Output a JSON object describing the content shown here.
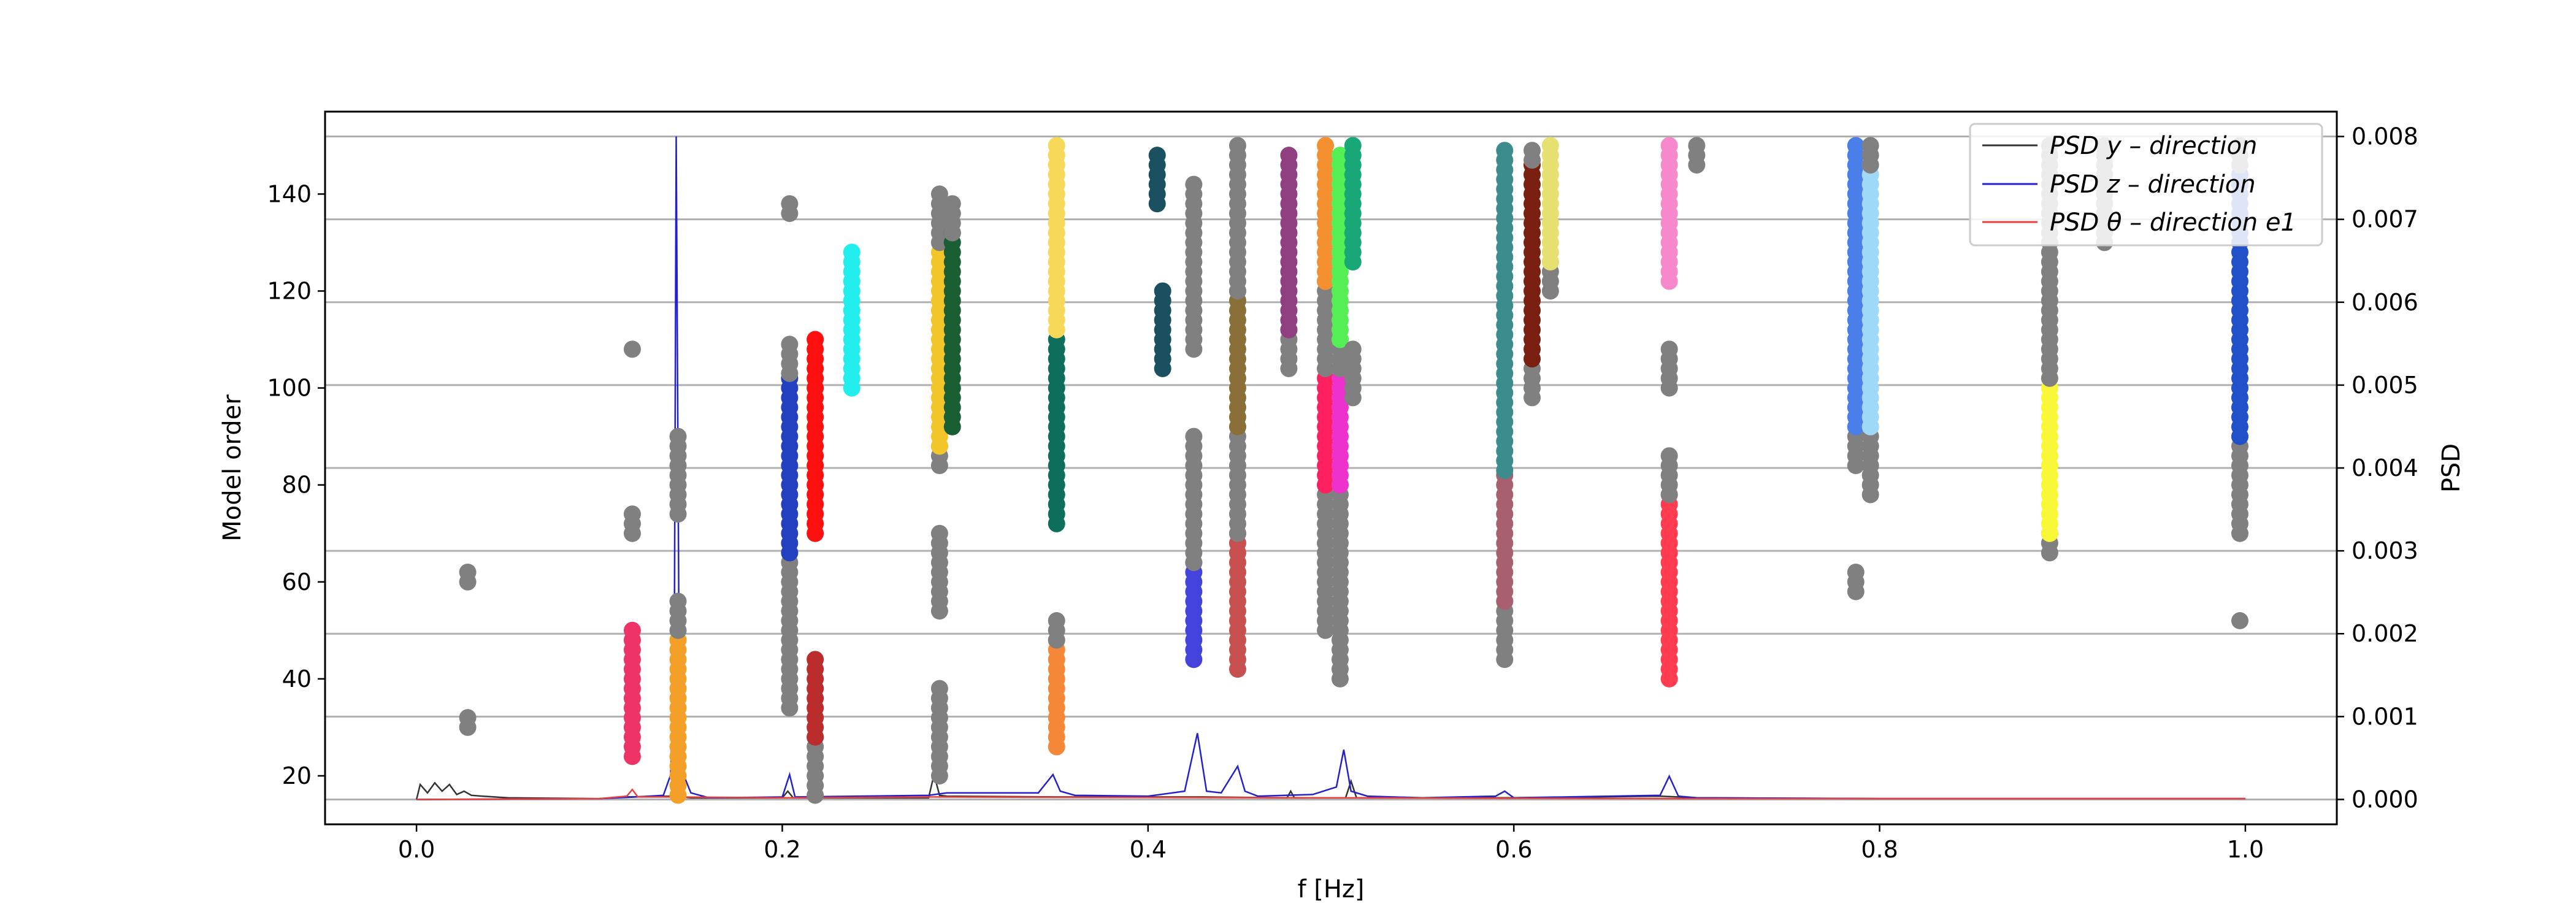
{
  "chart_data": {
    "type": "scatter",
    "title": "",
    "xlabel": "f [Hz]",
    "ylabel_left": "Model order",
    "ylabel_right": "PSD",
    "xlim": [
      -0.05,
      1.05
    ],
    "ylim_left": [
      10,
      157
    ],
    "ylim_right": [
      -0.0003,
      0.0083
    ],
    "x_ticks": [
      0.0,
      0.2,
      0.4,
      0.6,
      0.8,
      1.0
    ],
    "x_tick_labels": [
      "0.0",
      "0.2",
      "0.4",
      "0.6",
      "0.8",
      "1.0"
    ],
    "y_left_ticks": [
      20,
      40,
      60,
      80,
      100,
      120,
      140
    ],
    "y_left_tick_labels": [
      "20",
      "40",
      "60",
      "80",
      "100",
      "120",
      "140"
    ],
    "y_right_ticks": [
      0.0,
      0.001,
      0.002,
      0.003,
      0.004,
      0.005,
      0.006,
      0.007,
      0.008
    ],
    "y_right_tick_labels": [
      "0.000",
      "0.001",
      "0.002",
      "0.003",
      "0.004",
      "0.005",
      "0.006",
      "0.007",
      "0.008"
    ],
    "grid": "horizontal lines at right-axis ticks",
    "legend_placement": "top-right",
    "legend": [
      {
        "label": "PSD y – direction",
        "color": "#333333"
      },
      {
        "label": "PSD z – direction",
        "color": "#2222cc"
      },
      {
        "label": "PSD θ – direction e1",
        "color": "#e84040"
      }
    ],
    "psd_series": [
      {
        "name": "PSD y – direction",
        "color": "#333333",
        "points": [
          [
            0.0,
            0.0
          ],
          [
            0.002,
            0.00018
          ],
          [
            0.006,
            8e-05
          ],
          [
            0.01,
            0.0002
          ],
          [
            0.014,
            0.0001
          ],
          [
            0.018,
            0.00018
          ],
          [
            0.022,
            6e-05
          ],
          [
            0.026,
            0.0001
          ],
          [
            0.03,
            5e-05
          ],
          [
            0.036,
            4e-05
          ],
          [
            0.05,
            2e-05
          ],
          [
            0.1,
            1e-05
          ],
          [
            0.115,
            3e-05
          ],
          [
            0.14,
            4e-05
          ],
          [
            0.15,
            2e-05
          ],
          [
            0.2,
            2e-05
          ],
          [
            0.203,
            0.0001
          ],
          [
            0.206,
            2e-05
          ],
          [
            0.28,
            2e-05
          ],
          [
            0.283,
            0.0003
          ],
          [
            0.286,
            5e-05
          ],
          [
            0.29,
            4e-05
          ],
          [
            0.35,
            3e-05
          ],
          [
            0.43,
            3e-05
          ],
          [
            0.476,
            2e-05
          ],
          [
            0.478,
            0.0001
          ],
          [
            0.48,
            2e-05
          ],
          [
            0.508,
            2e-05
          ],
          [
            0.511,
            0.00022
          ],
          [
            0.514,
            2e-05
          ],
          [
            0.6,
            2e-05
          ],
          [
            0.68,
            4e-05
          ],
          [
            0.7,
            2e-05
          ],
          [
            0.8,
            1e-05
          ],
          [
            0.9,
            1e-05
          ],
          [
            1.0,
            1e-05
          ]
        ]
      },
      {
        "name": "PSD z – direction",
        "color": "#2222cc",
        "points": [
          [
            0.0,
            0.0
          ],
          [
            0.1,
            1e-05
          ],
          [
            0.12,
            3e-05
          ],
          [
            0.135,
            5e-05
          ],
          [
            0.139,
            0.0003
          ],
          [
            0.141,
            0.002
          ],
          [
            0.142,
            0.008
          ],
          [
            0.1435,
            0.002
          ],
          [
            0.146,
            0.0003
          ],
          [
            0.15,
            8e-05
          ],
          [
            0.16,
            2e-05
          ],
          [
            0.2,
            3e-05
          ],
          [
            0.204,
            0.0003
          ],
          [
            0.207,
            3e-05
          ],
          [
            0.28,
            5e-05
          ],
          [
            0.29,
            8e-05
          ],
          [
            0.34,
            8e-05
          ],
          [
            0.348,
            0.0003
          ],
          [
            0.352,
            0.0001
          ],
          [
            0.36,
            5e-05
          ],
          [
            0.4,
            4e-05
          ],
          [
            0.42,
            0.0001
          ],
          [
            0.427,
            0.0008
          ],
          [
            0.432,
            0.0001
          ],
          [
            0.44,
            8e-05
          ],
          [
            0.449,
            0.0004
          ],
          [
            0.453,
            0.0001
          ],
          [
            0.46,
            4e-05
          ],
          [
            0.49,
            6e-05
          ],
          [
            0.503,
            0.00015
          ],
          [
            0.507,
            0.0006
          ],
          [
            0.511,
            0.0001
          ],
          [
            0.52,
            4e-05
          ],
          [
            0.55,
            2e-05
          ],
          [
            0.59,
            4e-05
          ],
          [
            0.595,
            0.0001
          ],
          [
            0.6,
            2e-05
          ],
          [
            0.68,
            5e-05
          ],
          [
            0.685,
            0.00028
          ],
          [
            0.69,
            4e-05
          ],
          [
            0.7,
            2e-05
          ],
          [
            0.8,
            1e-05
          ],
          [
            1.0,
            1e-05
          ]
        ]
      },
      {
        "name": "PSD θ – direction e1",
        "color": "#e84040",
        "points": [
          [
            0.0,
            0.0
          ],
          [
            0.1,
            1e-05
          ],
          [
            0.115,
            4e-05
          ],
          [
            0.118,
            0.00012
          ],
          [
            0.121,
            3e-05
          ],
          [
            0.14,
            3e-05
          ],
          [
            0.2,
            2e-05
          ],
          [
            0.28,
            3e-05
          ],
          [
            0.5,
            2e-05
          ],
          [
            0.7,
            1e-05
          ],
          [
            1.0,
            1e-05
          ]
        ]
      }
    ],
    "stabilization_columns": [
      {
        "f": 0.028,
        "from": 30,
        "to": 32,
        "color": "#808080"
      },
      {
        "f": 0.028,
        "from": 60,
        "to": 62,
        "color": "#808080"
      },
      {
        "f": 0.118,
        "from": 24,
        "to": 50,
        "color": "#ee3366"
      },
      {
        "f": 0.118,
        "from": 70,
        "to": 74,
        "color": "#808080"
      },
      {
        "f": 0.118,
        "from": 108,
        "to": 108,
        "color": "#808080"
      },
      {
        "f": 0.143,
        "from": 16,
        "to": 48,
        "color": "#f4a028"
      },
      {
        "f": 0.143,
        "from": 50,
        "to": 56,
        "color": "#808080"
      },
      {
        "f": 0.143,
        "from": 74,
        "to": 90,
        "color": "#808080"
      },
      {
        "f": 0.204,
        "from": 34,
        "to": 66,
        "color": "#808080"
      },
      {
        "f": 0.204,
        "from": 66,
        "to": 103,
        "color": "#2240c0"
      },
      {
        "f": 0.204,
        "from": 103,
        "to": 110,
        "color": "#808080"
      },
      {
        "f": 0.204,
        "from": 136,
        "to": 138,
        "color": "#808080"
      },
      {
        "f": 0.218,
        "from": 16,
        "to": 28,
        "color": "#808080"
      },
      {
        "f": 0.218,
        "from": 28,
        "to": 44,
        "color": "#bb2c2c"
      },
      {
        "f": 0.218,
        "from": 70,
        "to": 110,
        "color": "#ff1010"
      },
      {
        "f": 0.238,
        "from": 100,
        "to": 128,
        "color": "#22eeee"
      },
      {
        "f": 0.286,
        "from": 20,
        "to": 38,
        "color": "#808080"
      },
      {
        "f": 0.286,
        "from": 54,
        "to": 70,
        "color": "#808080"
      },
      {
        "f": 0.286,
        "from": 84,
        "to": 88,
        "color": "#808080"
      },
      {
        "f": 0.286,
        "from": 88,
        "to": 130,
        "color": "#f2c628"
      },
      {
        "f": 0.286,
        "from": 130,
        "to": 140,
        "color": "#808080"
      },
      {
        "f": 0.293,
        "from": 92,
        "to": 132,
        "color": "#1a5e34"
      },
      {
        "f": 0.293,
        "from": 132,
        "to": 138,
        "color": "#808080"
      },
      {
        "f": 0.35,
        "from": 26,
        "to": 48,
        "color": "#f48838"
      },
      {
        "f": 0.35,
        "from": 48,
        "to": 52,
        "color": "#808080"
      },
      {
        "f": 0.35,
        "from": 72,
        "to": 110,
        "color": "#0e6e5c"
      },
      {
        "f": 0.35,
        "from": 112,
        "to": 150,
        "color": "#f8d858"
      },
      {
        "f": 0.408,
        "from": 104,
        "to": 120,
        "color": "#1a5060"
      },
      {
        "f": 0.405,
        "from": 138,
        "to": 148,
        "color": "#1a5060"
      },
      {
        "f": 0.425,
        "from": 44,
        "to": 64,
        "color": "#4444dd"
      },
      {
        "f": 0.425,
        "from": 64,
        "to": 90,
        "color": "#808080"
      },
      {
        "f": 0.425,
        "from": 108,
        "to": 142,
        "color": "#808080"
      },
      {
        "f": 0.449,
        "from": 42,
        "to": 70,
        "color": "#c85050"
      },
      {
        "f": 0.449,
        "from": 70,
        "to": 92,
        "color": "#808080"
      },
      {
        "f": 0.449,
        "from": 92,
        "to": 120,
        "color": "#8a7038"
      },
      {
        "f": 0.449,
        "from": 120,
        "to": 150,
        "color": "#808080"
      },
      {
        "f": 0.477,
        "from": 104,
        "to": 112,
        "color": "#808080"
      },
      {
        "f": 0.477,
        "from": 112,
        "to": 149,
        "color": "#904080"
      },
      {
        "f": 0.497,
        "from": 50,
        "to": 80,
        "color": "#808080"
      },
      {
        "f": 0.497,
        "from": 80,
        "to": 104,
        "color": "#ff2060"
      },
      {
        "f": 0.497,
        "from": 104,
        "to": 122,
        "color": "#808080"
      },
      {
        "f": 0.497,
        "from": 122,
        "to": 150,
        "color": "#f49030"
      },
      {
        "f": 0.505,
        "from": 40,
        "to": 80,
        "color": "#808080"
      },
      {
        "f": 0.505,
        "from": 80,
        "to": 104,
        "color": "#ee30cc"
      },
      {
        "f": 0.505,
        "from": 104,
        "to": 110,
        "color": "#808080"
      },
      {
        "f": 0.505,
        "from": 110,
        "to": 148,
        "color": "#55ee55"
      },
      {
        "f": 0.512,
        "from": 98,
        "to": 108,
        "color": "#808080"
      },
      {
        "f": 0.512,
        "from": 126,
        "to": 150,
        "color": "#18a878"
      },
      {
        "f": 0.595,
        "from": 44,
        "to": 56,
        "color": "#808080"
      },
      {
        "f": 0.595,
        "from": 56,
        "to": 83,
        "color": "#a86070"
      },
      {
        "f": 0.595,
        "from": 83,
        "to": 150,
        "color": "#3c8c8c"
      },
      {
        "f": 0.61,
        "from": 98,
        "to": 104,
        "color": "#808080"
      },
      {
        "f": 0.61,
        "from": 106,
        "to": 147,
        "color": "#7a2010"
      },
      {
        "f": 0.61,
        "from": 147,
        "to": 150,
        "color": "#808080"
      },
      {
        "f": 0.62,
        "from": 120,
        "to": 126,
        "color": "#808080"
      },
      {
        "f": 0.62,
        "from": 126,
        "to": 150,
        "color": "#e6e070"
      },
      {
        "f": 0.685,
        "from": 40,
        "to": 78,
        "color": "#ff3c50"
      },
      {
        "f": 0.685,
        "from": 78,
        "to": 86,
        "color": "#808080"
      },
      {
        "f": 0.685,
        "from": 100,
        "to": 108,
        "color": "#808080"
      },
      {
        "f": 0.685,
        "from": 122,
        "to": 150,
        "color": "#f888cc"
      },
      {
        "f": 0.7,
        "from": 146,
        "to": 150,
        "color": "#808080"
      },
      {
        "f": 0.787,
        "from": 58,
        "to": 62,
        "color": "#808080"
      },
      {
        "f": 0.787,
        "from": 84,
        "to": 92,
        "color": "#808080"
      },
      {
        "f": 0.787,
        "from": 92,
        "to": 150,
        "color": "#4a7ee8"
      },
      {
        "f": 0.795,
        "from": 78,
        "to": 92,
        "color": "#808080"
      },
      {
        "f": 0.795,
        "from": 92,
        "to": 146,
        "color": "#a0d8f8"
      },
      {
        "f": 0.795,
        "from": 146,
        "to": 150,
        "color": "#808080"
      },
      {
        "f": 0.893,
        "from": 66,
        "to": 70,
        "color": "#808080"
      },
      {
        "f": 0.893,
        "from": 70,
        "to": 102,
        "color": "#f8f838"
      },
      {
        "f": 0.893,
        "from": 102,
        "to": 150,
        "color": "#808080"
      },
      {
        "f": 0.923,
        "from": 130,
        "to": 150,
        "color": "#808080"
      },
      {
        "f": 0.997,
        "from": 52,
        "to": 52,
        "color": "#808080"
      },
      {
        "f": 0.997,
        "from": 70,
        "to": 90,
        "color": "#808080"
      },
      {
        "f": 0.997,
        "from": 90,
        "to": 146,
        "color": "#2250c8"
      },
      {
        "f": 0.997,
        "from": 146,
        "to": 150,
        "color": "#808080"
      }
    ]
  }
}
